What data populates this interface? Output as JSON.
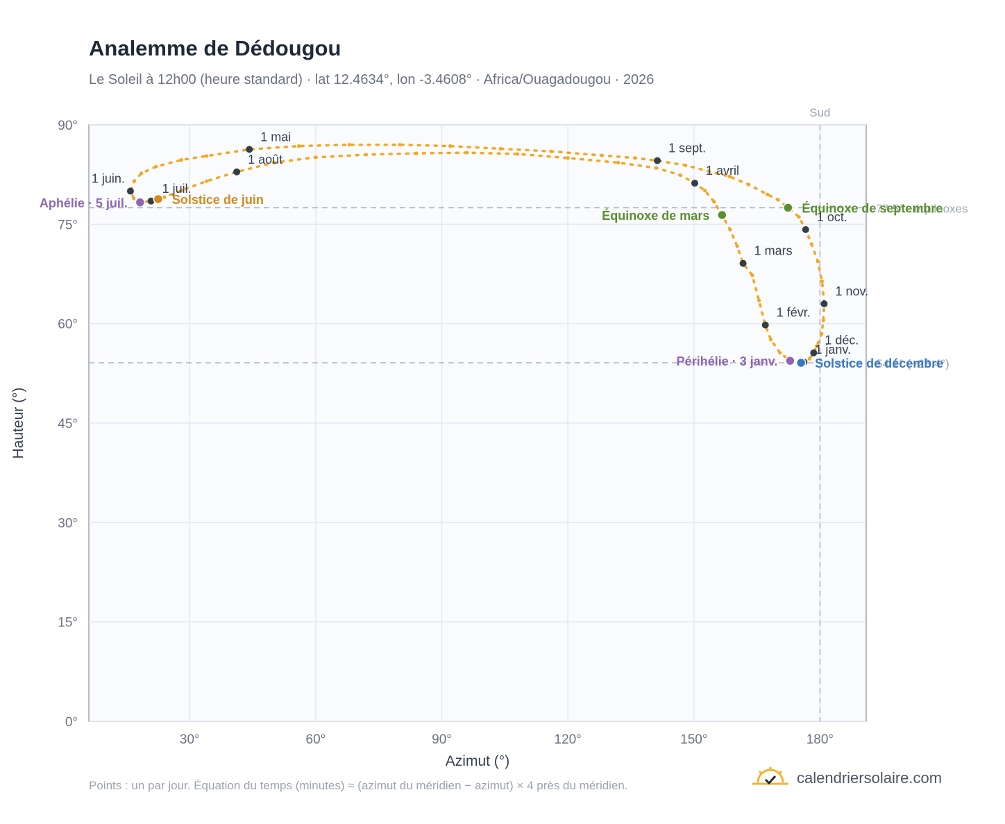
{
  "header": {
    "title": "Analemme de Dédougou",
    "subtitle": "Le Soleil à 12h00 (heure standard) · lat 12.4634°, lon -3.4608° · Africa/Ouagadougou · 2026"
  },
  "footer": {
    "note": "Points : un par jour. Équation du temps (minutes) ≈ (azimut du méridien − azimut) × 4 près du méridien.",
    "brand": "calendriersolaire.com",
    "brand_icon": "sun-check-icon"
  },
  "colors": {
    "curve": "#f5a623",
    "month_marker": "#333d47",
    "equinox": "#5a8f2e",
    "solstice_june": "#d4891a",
    "solstice_december": "#3a78c0",
    "apsis": "#8f66b3",
    "grid": "#e5e9ef",
    "plot_bg": "#f9fbfd",
    "axis": "#9aa5b4"
  },
  "chart_data": {
    "type": "scatter",
    "title": "Analemme de Dédougou",
    "xlabel": "Azimut (°)",
    "ylabel": "Hauteur (°)",
    "xlim": [
      6,
      191
    ],
    "ylim": [
      0,
      90
    ],
    "x_ticks": [
      30,
      60,
      90,
      120,
      150,
      180
    ],
    "y_ticks": [
      0,
      15,
      30,
      45,
      60,
      75,
      90
    ],
    "x_tick_labels": [
      "30°",
      "60°",
      "90°",
      "120°",
      "150°",
      "180°"
    ],
    "y_tick_labels": [
      "0°",
      "15°",
      "30°",
      "45°",
      "60°",
      "75°",
      "90°"
    ],
    "grid": true,
    "meridian": {
      "azimuth": 180,
      "label": "Sud"
    },
    "reference_lines": [
      {
        "altitude": 77.5,
        "label": "77.5° · équinoxes"
      },
      {
        "altitude": 54.1,
        "label": "54.1° (−23.4°)"
      }
    ],
    "daily_path": [
      [
        175.5,
        54.1
      ],
      [
        172.9,
        54.4
      ],
      [
        170.5,
        55.6
      ],
      [
        168.3,
        57.6
      ],
      [
        167.0,
        59.8
      ],
      [
        165.5,
        63.5
      ],
      [
        163.9,
        67.3
      ],
      [
        161.7,
        69.1
      ],
      [
        160.3,
        71.7
      ],
      [
        158.6,
        74.2
      ],
      [
        156.7,
        76.4
      ],
      [
        154.8,
        78.4
      ],
      [
        152.6,
        80.1
      ],
      [
        150.2,
        81.2
      ],
      [
        146.8,
        82.4
      ],
      [
        141.0,
        83.5
      ],
      [
        132.0,
        84.3
      ],
      [
        120.0,
        85.0
      ],
      [
        108.0,
        85.6
      ],
      [
        96.0,
        85.8
      ],
      [
        84.0,
        85.7
      ],
      [
        72.0,
        85.5
      ],
      [
        60.0,
        85.1
      ],
      [
        50.0,
        84.3
      ],
      [
        41.2,
        82.9
      ],
      [
        34.0,
        81.5
      ],
      [
        28.0,
        80.1
      ],
      [
        24.0,
        79.1
      ],
      [
        22.5,
        78.8
      ],
      [
        20.8,
        78.5
      ],
      [
        18.2,
        78.3
      ],
      [
        16.7,
        78.9
      ],
      [
        15.9,
        80.0
      ],
      [
        16.8,
        81.5
      ],
      [
        18.5,
        82.7
      ],
      [
        22.0,
        83.7
      ],
      [
        28.0,
        84.7
      ],
      [
        34.0,
        85.3
      ],
      [
        44.2,
        86.3
      ],
      [
        56.0,
        86.8
      ],
      [
        68.0,
        87.0
      ],
      [
        80.0,
        87.0
      ],
      [
        92.0,
        86.8
      ],
      [
        104.0,
        86.4
      ],
      [
        116.0,
        86.0
      ],
      [
        128.0,
        85.4
      ],
      [
        136.0,
        85.0
      ],
      [
        141.3,
        84.6
      ],
      [
        148.0,
        83.9
      ],
      [
        153.5,
        83.0
      ],
      [
        158.5,
        82.2
      ],
      [
        163.0,
        81.0
      ],
      [
        167.5,
        79.5
      ],
      [
        170.0,
        78.7
      ],
      [
        172.4,
        77.5
      ],
      [
        175.0,
        76.1
      ],
      [
        176.6,
        74.2
      ],
      [
        178.0,
        72.0
      ],
      [
        179.5,
        69.4
      ],
      [
        180.5,
        66.4
      ],
      [
        181.0,
        63.0
      ],
      [
        180.8,
        60.5
      ],
      [
        180.4,
        58.5
      ],
      [
        179.2,
        56.6
      ],
      [
        178.5,
        55.6
      ],
      [
        177.5,
        54.7
      ],
      [
        175.5,
        54.1
      ]
    ],
    "month_markers": [
      {
        "label": "1 janv.",
        "x": 176.2,
        "y": 54.2
      },
      {
        "label": "1 févr.",
        "x": 167.0,
        "y": 59.8
      },
      {
        "label": "1 mars",
        "x": 161.7,
        "y": 69.1
      },
      {
        "label": "1 avril",
        "x": 150.2,
        "y": 81.2
      },
      {
        "label": "1 mai",
        "x": 44.2,
        "y": 86.3
      },
      {
        "label": "1 juin.",
        "x": 15.9,
        "y": 80.0
      },
      {
        "label": "1 juil.",
        "x": 20.8,
        "y": 78.5
      },
      {
        "label": "1 août",
        "x": 41.2,
        "y": 82.9
      },
      {
        "label": "1 sept.",
        "x": 141.3,
        "y": 84.6
      },
      {
        "label": "1 oct.",
        "x": 176.6,
        "y": 74.2
      },
      {
        "label": "1 nov.",
        "x": 181.0,
        "y": 63.0
      },
      {
        "label": "1 déc.",
        "x": 178.5,
        "y": 55.6
      }
    ],
    "events": [
      {
        "label": "Équinoxe de mars",
        "x": 156.7,
        "y": 76.4,
        "type": "equinox"
      },
      {
        "label": "Équinoxe de septembre",
        "x": 172.4,
        "y": 77.5,
        "type": "equinox"
      },
      {
        "label": "Solstice de juin",
        "x": 22.5,
        "y": 78.8,
        "type": "solstice_june"
      },
      {
        "label": "Solstice de décembre",
        "x": 175.5,
        "y": 54.1,
        "type": "solstice_december"
      },
      {
        "label": "Aphélie · 5 juil.",
        "x": 18.2,
        "y": 78.3,
        "type": "apsis"
      },
      {
        "label": "Périhélie · 3 janv.",
        "x": 172.9,
        "y": 54.4,
        "type": "apsis"
      }
    ]
  }
}
